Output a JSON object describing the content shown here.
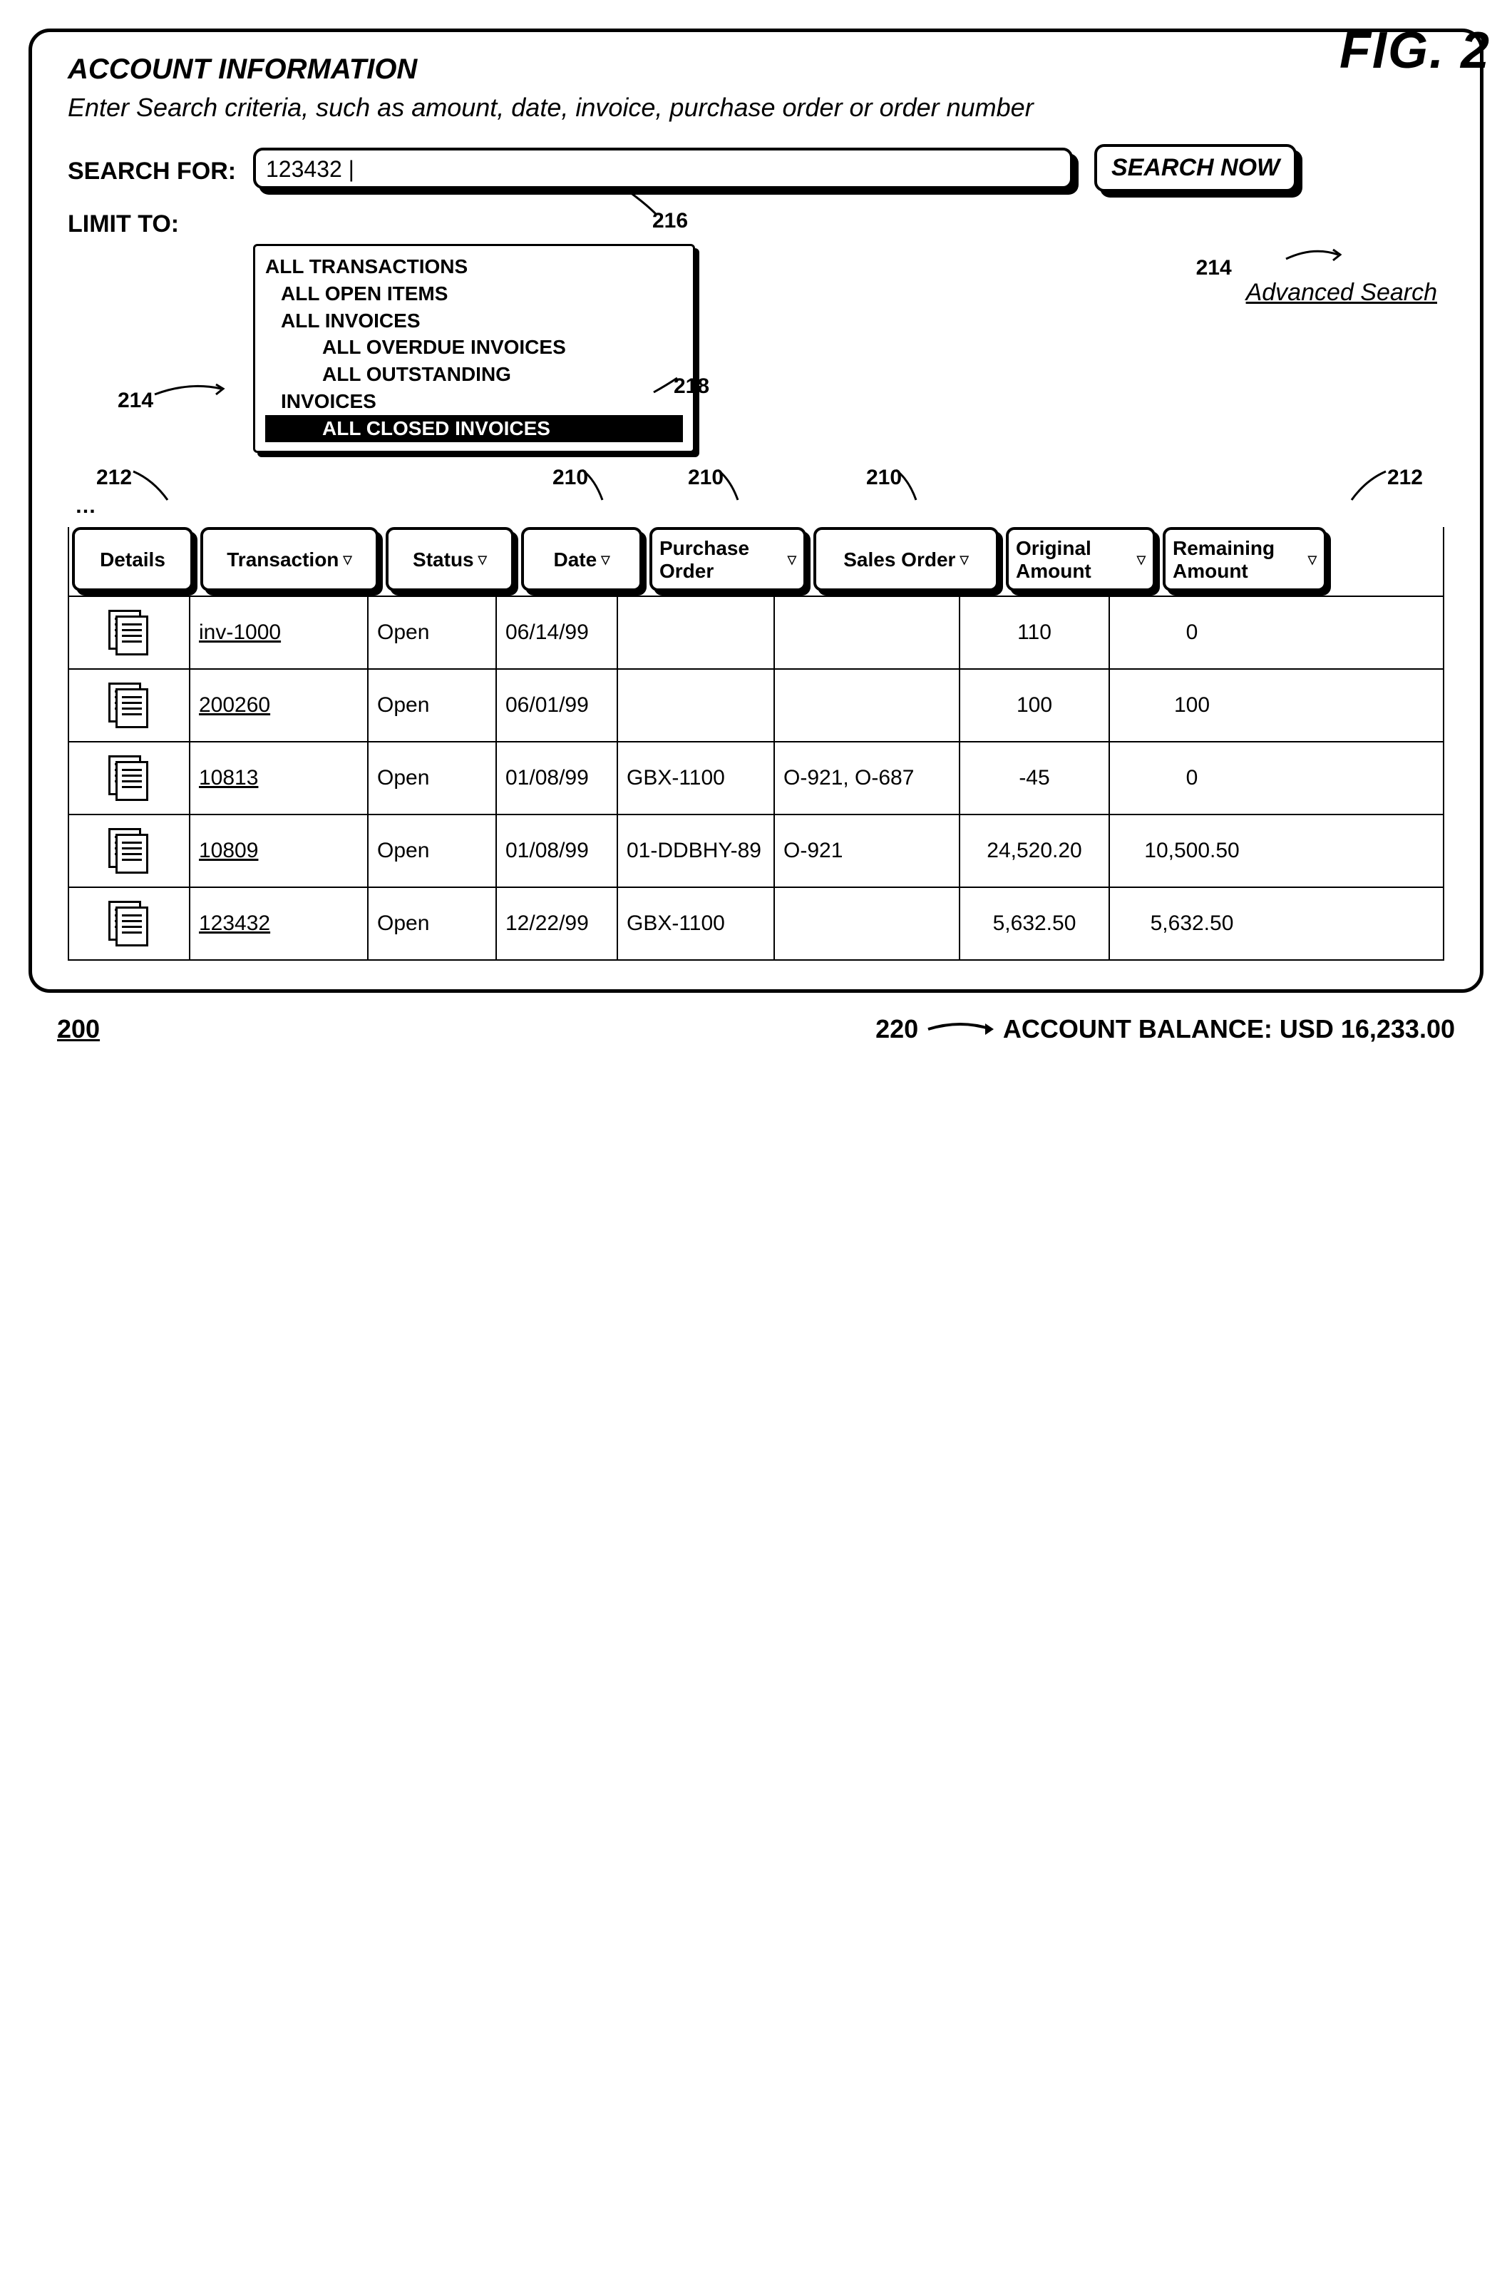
{
  "figure_label": "FIG. 2",
  "figure_number": "200",
  "panel": {
    "title": "ACCOUNT INFORMATION",
    "subtitle": "Enter Search criteria, such as amount, date, invoice, purchase order  or order number",
    "search_label": "SEARCH FOR:",
    "search_value": "123432 |",
    "search_button": "SEARCH NOW",
    "limit_label": "LIMIT TO:",
    "advanced": "Advanced Search"
  },
  "tree": {
    "items": [
      {
        "text": "ALL TRANSACTIONS",
        "indent": 0
      },
      {
        "text": "ALL OPEN ITEMS",
        "indent": 1
      },
      {
        "text": "ALL INVOICES",
        "indent": 1
      },
      {
        "text": "ALL OVERDUE INVOICES",
        "indent": 2
      },
      {
        "text": "ALL OUTSTANDING",
        "indent": 2
      },
      {
        "text": "INVOICES",
        "indent": 1
      },
      {
        "text": "ALL CLOSED INVOICES",
        "indent": 2,
        "selected": true
      }
    ]
  },
  "table": {
    "ellipsis": "…",
    "columns": [
      {
        "label": "Details",
        "sortable": false
      },
      {
        "label": "Transaction",
        "sortable": true
      },
      {
        "label": "Status",
        "sortable": true
      },
      {
        "label": "Date",
        "sortable": true
      },
      {
        "label": "Purchase Order",
        "sortable": true
      },
      {
        "label": "Sales Order",
        "sortable": true
      },
      {
        "label": "Original Amount",
        "sortable": true
      },
      {
        "label": "Remaining Amount",
        "sortable": true
      }
    ],
    "rows": [
      {
        "transaction": "inv-1000",
        "status": "Open",
        "date": "06/14/99",
        "po": "",
        "so": "",
        "orig": "110",
        "rem": "0"
      },
      {
        "transaction": "200260",
        "status": "Open",
        "date": "06/01/99",
        "po": "",
        "so": "",
        "orig": "100",
        "rem": "100"
      },
      {
        "transaction": "10813",
        "status": "Open",
        "date": "01/08/99",
        "po": "GBX-1100",
        "so": "O-921, O-687",
        "orig": "-45",
        "rem": "0"
      },
      {
        "transaction": "10809",
        "status": "Open",
        "date": "01/08/99",
        "po": "01-DDBHY-89",
        "so": "O-921",
        "orig": "24,520.20",
        "rem": "10,500.50"
      },
      {
        "transaction": "123432",
        "status": "Open",
        "date": "12/22/99",
        "po": "GBX-1100",
        "so": "",
        "orig": "5,632.50",
        "rem": "5,632.50"
      }
    ]
  },
  "balance": {
    "callout": "220",
    "label": "ACCOUNT BALANCE: USD 16,233.00"
  },
  "callouts": {
    "c216": "216",
    "c218": "218",
    "c214": "214",
    "c212": "212",
    "c210": "210"
  }
}
